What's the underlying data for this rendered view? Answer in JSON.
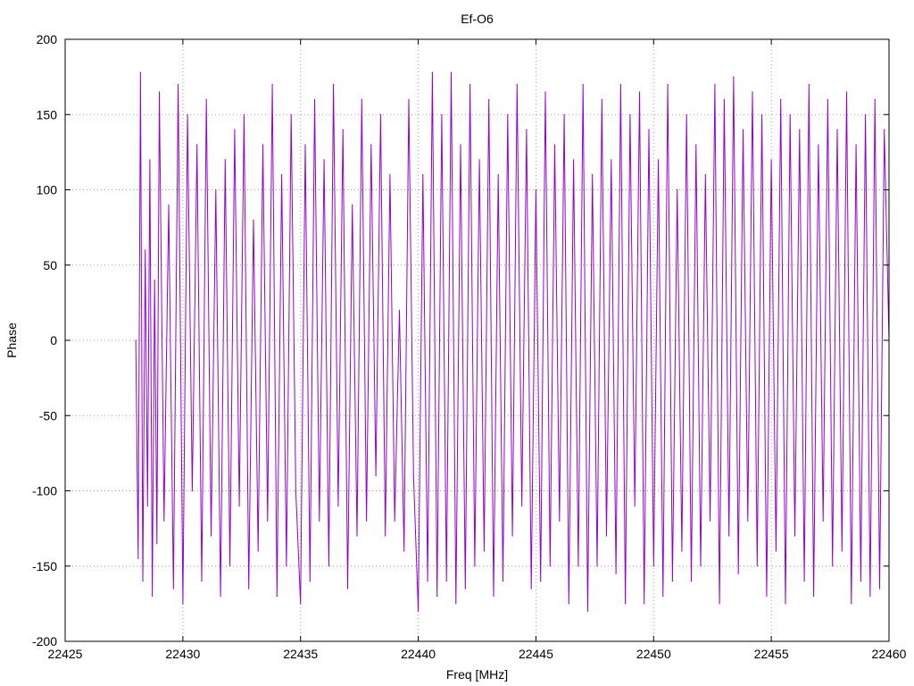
{
  "chart_data": {
    "type": "line",
    "title": "Ef-O6",
    "xlabel": "Freq [MHz]",
    "ylabel": "Phase",
    "xlim": [
      22425,
      22460
    ],
    "ylim": [
      -200,
      200
    ],
    "x_ticks": [
      22425,
      22430,
      22435,
      22440,
      22445,
      22450,
      22455,
      22460
    ],
    "y_ticks": [
      -200,
      -150,
      -100,
      -50,
      0,
      50,
      100,
      150,
      200
    ],
    "grid": true,
    "series": [
      {
        "color": "#9400d3",
        "x": [
          22428.0,
          22428.1,
          22428.2,
          22428.3,
          22428.4,
          22428.5,
          22428.6,
          22428.7,
          22428.8,
          22428.9,
          22429.0,
          22429.2,
          22429.4,
          22429.6,
          22429.8,
          22430.0,
          22430.2,
          22430.4,
          22430.6,
          22430.8,
          22431.0,
          22431.2,
          22431.4,
          22431.6,
          22431.8,
          22432.0,
          22432.2,
          22432.4,
          22432.6,
          22432.8,
          22433.0,
          22433.2,
          22433.4,
          22433.6,
          22433.8,
          22434.0,
          22434.2,
          22434.4,
          22434.6,
          22434.8,
          22435.0,
          22435.2,
          22435.4,
          22435.6,
          22435.8,
          22436.0,
          22436.2,
          22436.4,
          22436.6,
          22436.8,
          22437.0,
          22437.2,
          22437.4,
          22437.6,
          22437.8,
          22438.0,
          22438.2,
          22438.4,
          22438.6,
          22438.8,
          22439.0,
          22439.2,
          22439.4,
          22439.6,
          22439.8,
          22440.0,
          22440.2,
          22440.4,
          22440.6,
          22440.8,
          22441.0,
          22441.2,
          22441.4,
          22441.6,
          22441.8,
          22442.0,
          22442.2,
          22442.4,
          22442.6,
          22442.8,
          22443.0,
          22443.2,
          22443.4,
          22443.6,
          22443.8,
          22444.0,
          22444.2,
          22444.4,
          22444.6,
          22444.8,
          22445.0,
          22445.2,
          22445.4,
          22445.6,
          22445.8,
          22446.0,
          22446.2,
          22446.4,
          22446.6,
          22446.8,
          22447.0,
          22447.2,
          22447.4,
          22447.6,
          22447.8,
          22448.0,
          22448.2,
          22448.4,
          22448.6,
          22448.8,
          22449.0,
          22449.2,
          22449.4,
          22449.6,
          22449.8,
          22450.0,
          22450.2,
          22450.4,
          22450.6,
          22450.8,
          22451.0,
          22451.2,
          22451.4,
          22451.6,
          22451.8,
          22452.0,
          22452.2,
          22452.4,
          22452.6,
          22452.8,
          22453.0,
          22453.2,
          22453.4,
          22453.6,
          22453.8,
          22454.0,
          22454.2,
          22454.4,
          22454.6,
          22454.8,
          22455.0,
          22455.2,
          22455.4,
          22455.6,
          22455.8,
          22456.0,
          22456.2,
          22456.4,
          22456.6,
          22456.8,
          22457.0,
          22457.2,
          22457.4,
          22457.6,
          22457.8,
          22458.0,
          22458.2,
          22458.4,
          22458.6,
          22458.8,
          22459.0,
          22459.2,
          22459.4,
          22459.6,
          22459.8,
          22460.0
        ],
        "y": [
          0,
          -145,
          178,
          -160,
          60,
          -110,
          120,
          -170,
          40,
          -135,
          165,
          -120,
          90,
          -165,
          170,
          -175,
          150,
          -100,
          130,
          -160,
          160,
          -130,
          100,
          -170,
          120,
          -150,
          140,
          -110,
          150,
          -165,
          80,
          -140,
          130,
          -120,
          170,
          -170,
          110,
          -150,
          150,
          -100,
          -175,
          130,
          -160,
          160,
          -120,
          120,
          -150,
          170,
          -110,
          140,
          -165,
          90,
          -130,
          160,
          -120,
          130,
          -90,
          150,
          -130,
          110,
          -120,
          20,
          -140,
          160,
          -90,
          -180,
          110,
          -160,
          178,
          -170,
          150,
          -160,
          178,
          -175,
          130,
          -165,
          170,
          -150,
          120,
          -140,
          160,
          -170,
          110,
          -160,
          150,
          -130,
          170,
          -110,
          140,
          -165,
          100,
          -160,
          165,
          -150,
          130,
          -120,
          150,
          -175,
          120,
          -150,
          170,
          -180,
          110,
          -150,
          160,
          -130,
          120,
          -155,
          170,
          -175,
          150,
          -110,
          165,
          -175,
          140,
          -150,
          120,
          -170,
          170,
          -160,
          100,
          -140,
          150,
          -160,
          130,
          -150,
          110,
          -120,
          170,
          -175,
          160,
          -130,
          175,
          -155,
          140,
          -120,
          165,
          -150,
          150,
          -170,
          120,
          -140,
          160,
          -175,
          150,
          -130,
          140,
          -160,
          170,
          -170,
          130,
          -120,
          160,
          -150,
          140,
          -140,
          165,
          -175,
          130,
          -160,
          150,
          -170,
          160,
          -165,
          140,
          0
        ]
      }
    ]
  }
}
